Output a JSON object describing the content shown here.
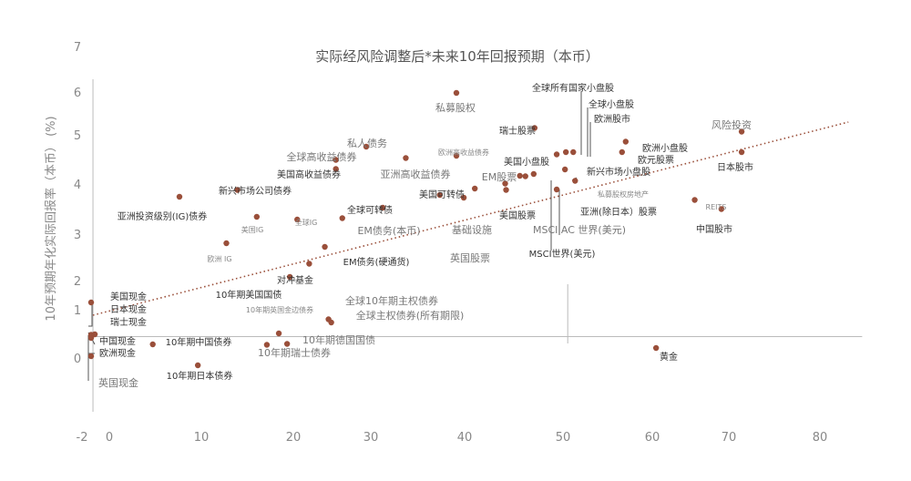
{
  "chart_data": {
    "type": "scatter",
    "title": "实际经风险调整后*未来10年回报预期（本币）",
    "xlabel": "",
    "ylabel": "10年预期年化实际回报率（本币）  (%)",
    "xlim": [
      -2,
      82
    ],
    "ylim": [
      -1.6,
      7
    ],
    "x_ticks": [
      "-2",
      "0",
      "10",
      "20",
      "30",
      "40",
      "50",
      "60",
      "70",
      "80"
    ],
    "y_ticks": [
      "0",
      "1",
      "2",
      "3",
      "4",
      "5",
      "6",
      "7"
    ],
    "grid": false,
    "trendline": {
      "from": [
        0,
        1.06
      ],
      "to": [
        80,
        5.24
      ],
      "style": "dotted"
    },
    "points": [
      {
        "label": "私募股权",
        "x": 37.9,
        "y": 5.9
      },
      {
        "label": "全球所有国家小盘股",
        "x": 50.6,
        "y": 4.6
      },
      {
        "label": "全球小盘股",
        "x": 49.8,
        "y": 4.6
      },
      {
        "label": "欧洲股市",
        "x": 48.8,
        "y": 4.55
      },
      {
        "label": "瑞士股票",
        "x": 46.4,
        "y": 5.13
      },
      {
        "label": "风险投资",
        "x": 68.9,
        "y": 5.05
      },
      {
        "label": "日本股市",
        "x": 68.9,
        "y": 4.6
      },
      {
        "label": "欧洲小盘股",
        "x": 56.3,
        "y": 4.83
      },
      {
        "label": "欧元股票",
        "x": 55.9,
        "y": 4.6
      },
      {
        "label": "美国小盘股",
        "x": 45.4,
        "y": 4.07
      },
      {
        "label": "新兴市场小盘股",
        "x": 49.7,
        "y": 4.22
      },
      {
        "label": "私募股权房地产",
        "x": 50.8,
        "y": 3.97
      },
      {
        "label": "EM股票",
        "x": 43.2,
        "y": 3.91
      },
      {
        "label": "美国股票",
        "x": 43.3,
        "y": 3.77
      },
      {
        "label": "亚洲(除日本）股票",
        "x": 48.8,
        "y": 3.78
      },
      {
        "label": "REITS",
        "x": 63.8,
        "y": 3.55
      },
      {
        "label": "中国股市",
        "x": 66.7,
        "y": 3.35
      },
      {
        "label": "MSCI AC 世界(美元)",
        "x": 44.8,
        "y": 4.08
      },
      {
        "label": "MSCI世界(美元)",
        "x": 46.3,
        "y": 4.12
      },
      {
        "label": "美国可转债",
        "x": 36.1,
        "y": 3.66
      },
      {
        "label": "基础设施",
        "x": 39.9,
        "y": 3.8
      },
      {
        "label": "英国股票",
        "x": 38.7,
        "y": 3.6
      },
      {
        "label": "亚洲高收益债券",
        "x": 32.4,
        "y": 4.47
      },
      {
        "label": "欧洲高收益债券",
        "x": 37.9,
        "y": 4.52
      },
      {
        "label": "私人债务",
        "x": 28.1,
        "y": 4.72
      },
      {
        "label": "全球高收益债券",
        "x": 24.8,
        "y": 4.43
      },
      {
        "label": "美国高收益债券",
        "x": 24.8,
        "y": 4.23
      },
      {
        "label": "新兴市场公司债券",
        "x": 14.1,
        "y": 3.77
      },
      {
        "label": "亚洲投资级别(IG)债券",
        "x": 7.8,
        "y": 3.62
      },
      {
        "label": "美国IG",
        "x": 16.2,
        "y": 3.18
      },
      {
        "label": "全球IG",
        "x": 20.6,
        "y": 3.12
      },
      {
        "label": "全球可转债",
        "x": 29.9,
        "y": 3.38
      },
      {
        "label": "EM债务(本币)",
        "x": 25.5,
        "y": 3.15
      },
      {
        "label": "欧洲 IG",
        "x": 12.9,
        "y": 2.6
      },
      {
        "label": "EM债务(硬通货)",
        "x": 23.6,
        "y": 2.52
      },
      {
        "label": "对冲基金",
        "x": 21.9,
        "y": 2.15
      },
      {
        "label": "10年期美国国债",
        "x": 19.8,
        "y": 1.86
      },
      {
        "label": "全球10年期主权债券",
        "x": 24.0,
        "y": 0.93
      },
      {
        "label": "全球主权债券(所有期限)",
        "x": 24.3,
        "y": 0.86
      },
      {
        "label": "10年期英国金边债券",
        "x": 18.6,
        "y": 0.62
      },
      {
        "label": "10年期德国国债",
        "x": 19.5,
        "y": 0.39
      },
      {
        "label": "10年期瑞士债券",
        "x": 17.3,
        "y": 0.37
      },
      {
        "label": "10年期中国债券",
        "x": 4.9,
        "y": 0.38
      },
      {
        "label": "10年期日本债券",
        "x": 9.8,
        "y": -0.08
      },
      {
        "label": "黄金",
        "x": 59.6,
        "y": 0.3
      },
      {
        "label": "美国现金",
        "x": -1.8,
        "y": 1.3
      },
      {
        "label": "日本现金",
        "x": -1.8,
        "y": 0.56
      },
      {
        "label": "瑞士现金",
        "x": -1.8,
        "y": 0.59
      },
      {
        "label": "中国现金",
        "x": -1.4,
        "y": 0.6
      },
      {
        "label": "欧洲现金",
        "x": -1.8,
        "y": 0.12
      },
      {
        "label": "英国现金",
        "x": -1.8,
        "y": 0.52
      }
    ]
  }
}
